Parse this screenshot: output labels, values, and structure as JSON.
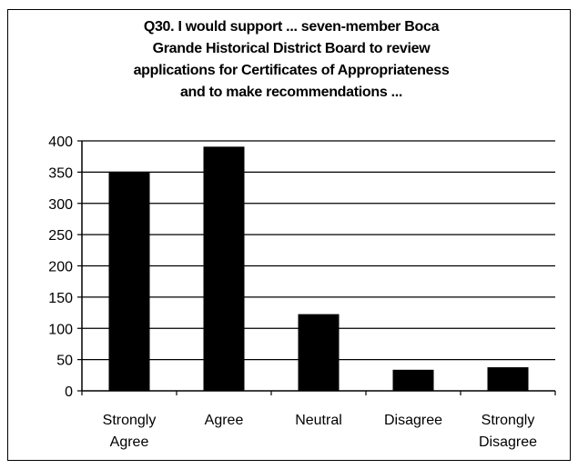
{
  "chart_data": {
    "type": "bar",
    "title_lines": [
      "Q30. I would support ... seven-member Boca",
      "Grande Historical District Board to review",
      "applications for Certificates of Appropriateness",
      "and to make recommendations ..."
    ],
    "categories": [
      [
        "Strongly",
        "Agree"
      ],
      [
        "Agree"
      ],
      [
        "Neutral"
      ],
      [
        "Disagree"
      ],
      [
        "Strongly",
        "Disagree"
      ]
    ],
    "values": [
      350,
      390,
      122,
      33,
      37
    ],
    "ylim": [
      0,
      400
    ],
    "yticks": [
      "0",
      "50",
      "100",
      "150",
      "200",
      "250",
      "300",
      "350",
      "400"
    ],
    "grid": true,
    "bar_color": "#000000"
  }
}
